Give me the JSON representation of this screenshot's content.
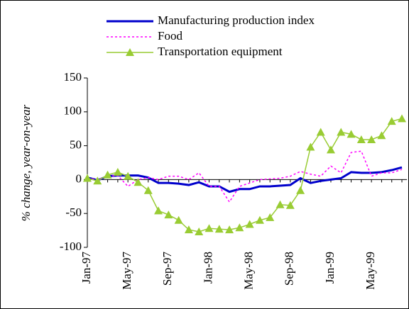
{
  "chart_data": {
    "type": "line",
    "y_label": "% change, year-on-year",
    "categories": [
      "Jan-97",
      null,
      null,
      null,
      "May-97",
      null,
      null,
      null,
      "Sep-97",
      null,
      null,
      null,
      "Jan-98",
      null,
      null,
      null,
      "May-98",
      null,
      null,
      null,
      "Sep-98",
      null,
      null,
      null,
      "Jan-99",
      null,
      null,
      null,
      "May-99",
      null,
      null,
      null
    ],
    "series": [
      {
        "name": "Manufacturing production index",
        "color": "#0000cc",
        "style": "solid",
        "values": [
          3,
          -1,
          5,
          6,
          6,
          6,
          3,
          -5,
          -5,
          -6,
          -8,
          -4,
          -10,
          -10,
          -18,
          -14,
          -14,
          -10,
          -10,
          -9,
          -8,
          2,
          -5,
          -2,
          0,
          2,
          11,
          10,
          10,
          11,
          14,
          18
        ]
      },
      {
        "name": "Food",
        "color": "#ff00ff",
        "style": "dashed",
        "values": [
          2,
          0,
          5,
          6,
          -10,
          0,
          3,
          0,
          5,
          5,
          0,
          10,
          -10,
          -10,
          -33,
          -10,
          -5,
          0,
          1,
          2,
          5,
          12,
          8,
          5,
          20,
          10,
          40,
          42,
          5,
          10,
          10,
          15
        ]
      },
      {
        "name": "Transportation equipment",
        "color": "#99cc33",
        "style": "solid",
        "marker": "triangle",
        "values": [
          2,
          -2,
          7,
          11,
          5,
          -4,
          -16,
          -46,
          -52,
          -60,
          -74,
          -77,
          -72,
          -73,
          -74,
          -71,
          -66,
          -60,
          -56,
          -37,
          -38,
          -16,
          48,
          70,
          44,
          70,
          67,
          59,
          59,
          65,
          86,
          90
        ]
      }
    ],
    "ylim": [
      -100,
      150
    ],
    "yticks": [
      -100,
      -50,
      0,
      50,
      100,
      150
    ],
    "legend": "top"
  }
}
